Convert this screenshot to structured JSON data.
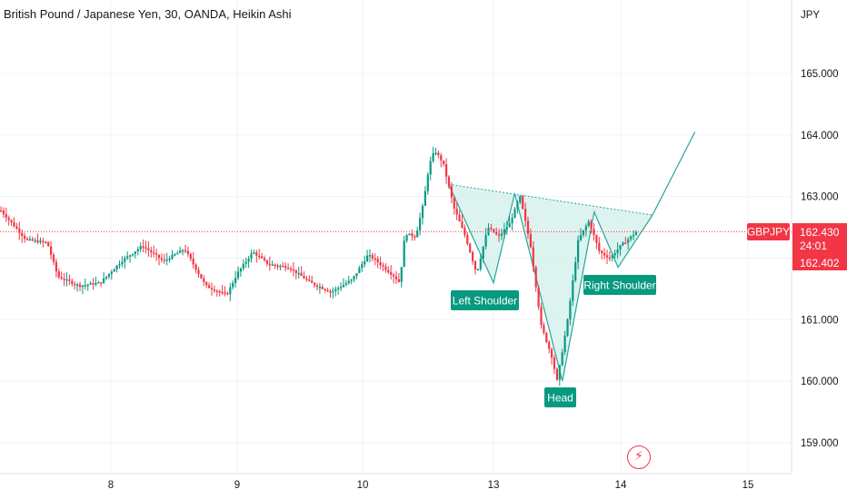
{
  "header": {
    "title": "British Pound / Japanese Yen, 30, OANDA, Heikin Ashi"
  },
  "price_axis": {
    "currency": "JPY"
  },
  "symbol_tag": {
    "symbol": "GBPJPY",
    "price": "162.430",
    "countdown": "24:01",
    "bid": "162.402"
  },
  "annotations": {
    "left": "Left Shoulder",
    "head": "Head",
    "right": "Right Shoulder"
  },
  "colors": {
    "up": "#089981",
    "down": "#f23645",
    "pattern_fill": "#d4f0ec",
    "pattern_line": "#26a69a",
    "grid": "#f0f3fa"
  },
  "icons": {
    "alert": "lightning-icon"
  },
  "chart_data": {
    "type": "candlestick",
    "style": "Heikin Ashi",
    "timeframe": "30",
    "source": "OANDA",
    "yticks": [
      "165.000",
      "164.000",
      "163.000",
      "162.000",
      "161.000",
      "160.000",
      "159.000"
    ],
    "ylim": [
      158.8,
      165.9
    ],
    "xticks": [
      "8",
      "9",
      "10",
      "13",
      "14",
      "15"
    ],
    "grid": true,
    "current_price": 162.43,
    "price_path": [
      [
        "7 00:00",
        162.8
      ],
      [
        "7 02:00",
        162.9
      ],
      [
        "7 05:00",
        162.6
      ],
      [
        "7 08:00",
        162.3
      ],
      [
        "7 12:00",
        162.25
      ],
      [
        "7 14:00",
        161.7
      ],
      [
        "7 18:00",
        161.55
      ],
      [
        "7 22:00",
        161.6
      ],
      [
        "8 02:00",
        161.95
      ],
      [
        "8 06:00",
        162.2
      ],
      [
        "8 10:00",
        161.95
      ],
      [
        "8 14:00",
        162.15
      ],
      [
        "8 18:00",
        161.55
      ],
      [
        "8 22:00",
        161.4
      ],
      [
        "9 00:00",
        161.75
      ],
      [
        "9 03:00",
        162.1
      ],
      [
        "9 06:00",
        161.9
      ],
      [
        "9 10:00",
        161.85
      ],
      [
        "9 14:00",
        161.6
      ],
      [
        "9 18:00",
        161.45
      ],
      [
        "9 22:00",
        161.65
      ],
      [
        "10 02:00",
        162.05
      ],
      [
        "10 04:00",
        162.0
      ],
      [
        "10 08:00",
        161.85
      ],
      [
        "10 12:00",
        161.7
      ],
      [
        "10 14:00",
        161.6
      ],
      [
        "10 16:00",
        162.4
      ],
      [
        "10 20:00",
        162.35
      ],
      [
        "10 23:00",
        162.9
      ],
      [
        "11 01:00",
        163.5
      ],
      [
        "11 03:00",
        163.75
      ],
      [
        "11 06:00",
        163.55
      ],
      [
        "11 10:00",
        162.8
      ],
      [
        "11 14:00",
        162.35
      ],
      [
        "11 18:00",
        161.75
      ],
      [
        "11 22:00",
        162.5
      ],
      [
        "12 02:00",
        162.35
      ],
      [
        "12 06:00",
        162.55
      ],
      [
        "12 10:00",
        163.0
      ],
      [
        "12 14:00",
        162.2
      ],
      [
        "12 18:00",
        160.9
      ],
      [
        "12 22:00",
        160.4
      ],
      [
        "13 00:00",
        160.0
      ],
      [
        "13 04:00",
        161.0
      ],
      [
        "13 08:00",
        162.3
      ],
      [
        "13 12:00",
        162.6
      ],
      [
        "13 16:00",
        162.1
      ],
      [
        "13 20:00",
        162.0
      ],
      [
        "14 00:00",
        162.2
      ],
      [
        "14 03:00",
        162.43
      ]
    ],
    "pattern": {
      "name": "inverse head and shoulders",
      "points": [
        [
          "11 08:00",
          163.2
        ],
        [
          "12 00:00",
          161.6
        ],
        [
          "12 08:00",
          163.05
        ],
        [
          "13 02:00",
          160.0
        ],
        [
          "13 14:00",
          162.75
        ],
        [
          "13 23:00",
          161.85
        ],
        [
          "14 06:00",
          162.7
        ]
      ],
      "neckline": [
        [
          "11 08:00",
          163.2
        ],
        [
          "14 06:00",
          162.7
        ]
      ],
      "projection": [
        [
          "14 06:00",
          162.7
        ],
        [
          "14 14:00",
          164.05
        ]
      ]
    }
  }
}
